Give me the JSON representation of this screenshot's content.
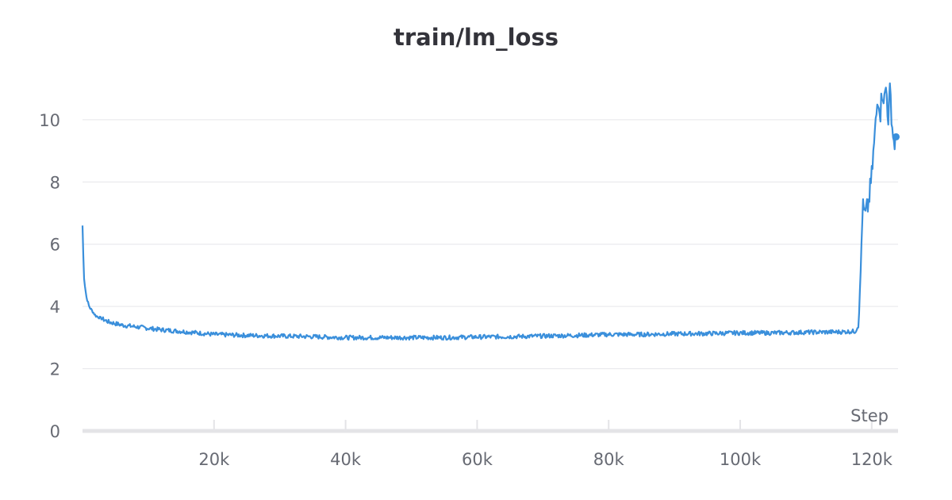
{
  "chart_data": {
    "type": "line",
    "title": "train/lm_loss",
    "xlabel": "Step",
    "ylabel": "",
    "xlim": [
      0,
      124000
    ],
    "ylim": [
      0,
      11.5
    ],
    "x_ticks": [
      20000,
      40000,
      60000,
      80000,
      100000,
      120000
    ],
    "x_tick_labels": [
      "20k",
      "40k",
      "60k",
      "80k",
      "100k",
      "120k"
    ],
    "y_ticks": [
      0,
      2,
      4,
      6,
      8,
      10
    ],
    "y_tick_labels": [
      "0",
      "2",
      "4",
      "6",
      "8",
      "10"
    ],
    "grid": "horizontal",
    "legend": "none",
    "color": "#3a8fdb",
    "series": [
      {
        "x": [
          0,
          200,
          400,
          600,
          1000,
          1500,
          2000,
          3000,
          4000,
          6000,
          8000,
          10000,
          12000,
          15000,
          20000,
          25000,
          30000,
          35000,
          40000,
          45000,
          50000,
          55000,
          60000,
          65000,
          70000,
          75000,
          80000,
          85000,
          90000,
          95000,
          100000,
          105000,
          110000,
          115000,
          117500,
          118000,
          118300,
          118600,
          119000,
          119500,
          120000,
          120500,
          120800,
          121000,
          121300,
          121600,
          121900,
          122200,
          122500,
          122800,
          123100,
          123400,
          123700
        ],
        "y": [
          6.6,
          5.0,
          4.6,
          4.3,
          4.0,
          3.85,
          3.7,
          3.6,
          3.5,
          3.4,
          3.35,
          3.3,
          3.25,
          3.2,
          3.1,
          3.07,
          3.05,
          3.03,
          3.0,
          3.0,
          3.0,
          3.0,
          3.02,
          3.03,
          3.05,
          3.07,
          3.1,
          3.1,
          3.12,
          3.13,
          3.15,
          3.15,
          3.17,
          3.18,
          3.2,
          3.4,
          5.0,
          7.2,
          6.9,
          7.3,
          8.2,
          9.6,
          10.4,
          10.8,
          10.2,
          11.0,
          10.6,
          11.1,
          10.0,
          11.0,
          9.8,
          9.2,
          9.45
        ]
      }
    ]
  }
}
